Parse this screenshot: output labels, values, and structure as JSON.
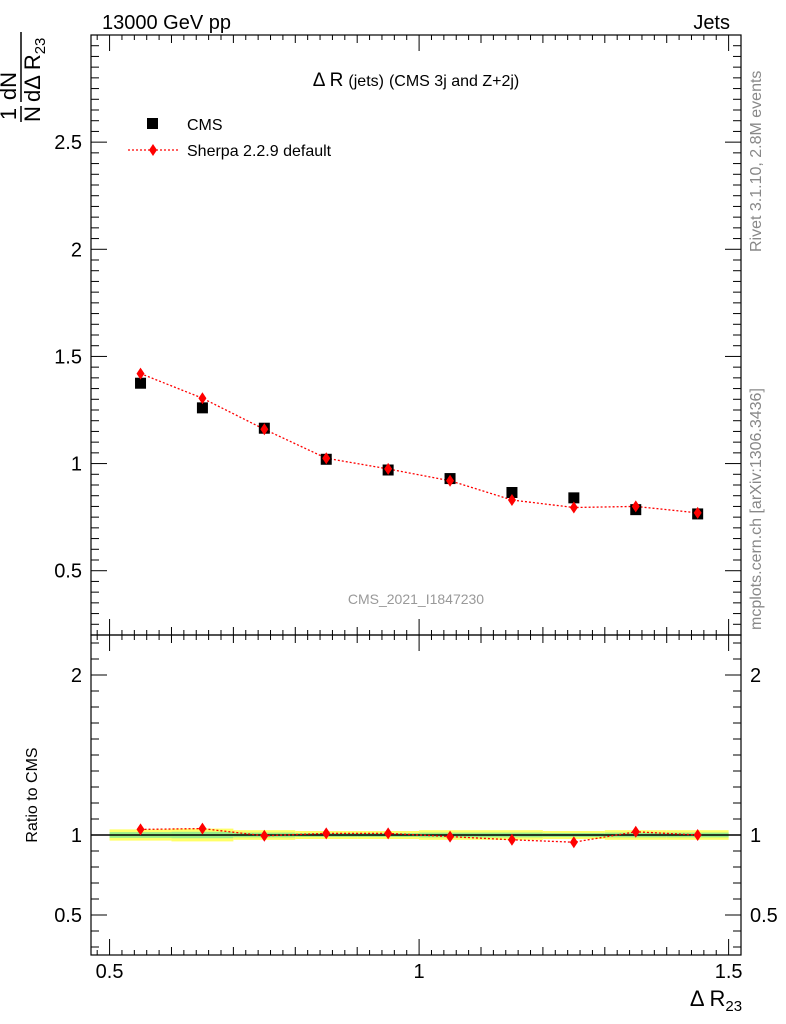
{
  "header": {
    "left": "13000 GeV pp",
    "right": "Jets"
  },
  "plot_title": {
    "symbol": "Δ R",
    "small": "(jets)",
    "rest": "(CMS 3j and Z+2j)"
  },
  "watermark": "CMS_2021_I1847230",
  "side_labels": {
    "rivet": "Rivet 3.1.10,  2.8M events",
    "mcplots": "mcplots.cern.ch [arXiv:1306.3436]"
  },
  "main_ylabel": {
    "num_one": "1",
    "den_n": "N",
    "num_dn": "dN",
    "den_dr": "dΔ R",
    "den_sub": "23"
  },
  "ratio_ylabel": "Ratio to CMS",
  "xlabel": {
    "text": "Δ R",
    "sub": "23"
  },
  "colors": {
    "data": "#000000",
    "mc": "#ff0000",
    "band_yellow": "#ffff66",
    "band_green": "#99ee88"
  },
  "icons": {
    "data_marker": "filled-square",
    "mc_marker": "red-diamond"
  },
  "chart_data": [
    {
      "type": "scatter",
      "xlim": [
        0.47,
        1.52
      ],
      "ylim": [
        0.2,
        3.0
      ],
      "x_ticks": [
        0.5,
        1,
        1.5
      ],
      "x_tick_labels": [
        "0.5",
        "1",
        "1.5"
      ],
      "y_ticks": [
        0.5,
        1,
        1.5,
        2,
        2.5
      ],
      "y_tick_labels": [
        "0.5",
        "1",
        "1.5",
        "2",
        "2.5"
      ],
      "legend_position": "top-left",
      "bin_edges": [
        0.5,
        0.6,
        0.7,
        0.8,
        0.9,
        1.0,
        1.1,
        1.2,
        1.3,
        1.4,
        1.5
      ],
      "x": [
        0.55,
        0.65,
        0.75,
        0.85,
        0.95,
        1.05,
        1.15,
        1.25,
        1.35,
        1.45
      ],
      "series": [
        {
          "name": "CMS",
          "style": "marker",
          "values": [
            1.375,
            1.26,
            1.165,
            1.02,
            0.97,
            0.93,
            0.865,
            0.84,
            0.785,
            0.765
          ]
        },
        {
          "name": "Sherpa 2.2.9 default",
          "style": "line-marker",
          "values": [
            1.42,
            1.305,
            1.16,
            1.025,
            0.975,
            0.92,
            0.83,
            0.795,
            0.8,
            0.77
          ]
        }
      ]
    },
    {
      "type": "line",
      "ylabel": "Ratio to CMS",
      "xlim": [
        0.47,
        1.52
      ],
      "ylim": [
        0.25,
        2.25
      ],
      "y_ticks": [
        0.5,
        1,
        2
      ],
      "y_tick_labels": [
        "0.5",
        "1",
        "2"
      ],
      "bin_edges": [
        0.5,
        0.6,
        0.7,
        0.8,
        0.9,
        1.0,
        1.1,
        1.2,
        1.3,
        1.4,
        1.5
      ],
      "x": [
        0.55,
        0.65,
        0.75,
        0.85,
        0.95,
        1.05,
        1.15,
        1.25,
        1.35,
        1.45
      ],
      "band_halfwidth_yellow": [
        0.035,
        0.04,
        0.03,
        0.025,
        0.025,
        0.03,
        0.03,
        0.025,
        0.03,
        0.03
      ],
      "band_halfwidth_green": [
        0.018,
        0.02,
        0.015,
        0.012,
        0.012,
        0.015,
        0.015,
        0.013,
        0.015,
        0.015
      ],
      "series": [
        {
          "name": "Sherpa 2.2.9 default",
          "values": [
            1.035,
            1.04,
            0.995,
            1.01,
            1.01,
            0.99,
            0.97,
            0.955,
            1.02,
            1.0
          ]
        }
      ]
    }
  ]
}
